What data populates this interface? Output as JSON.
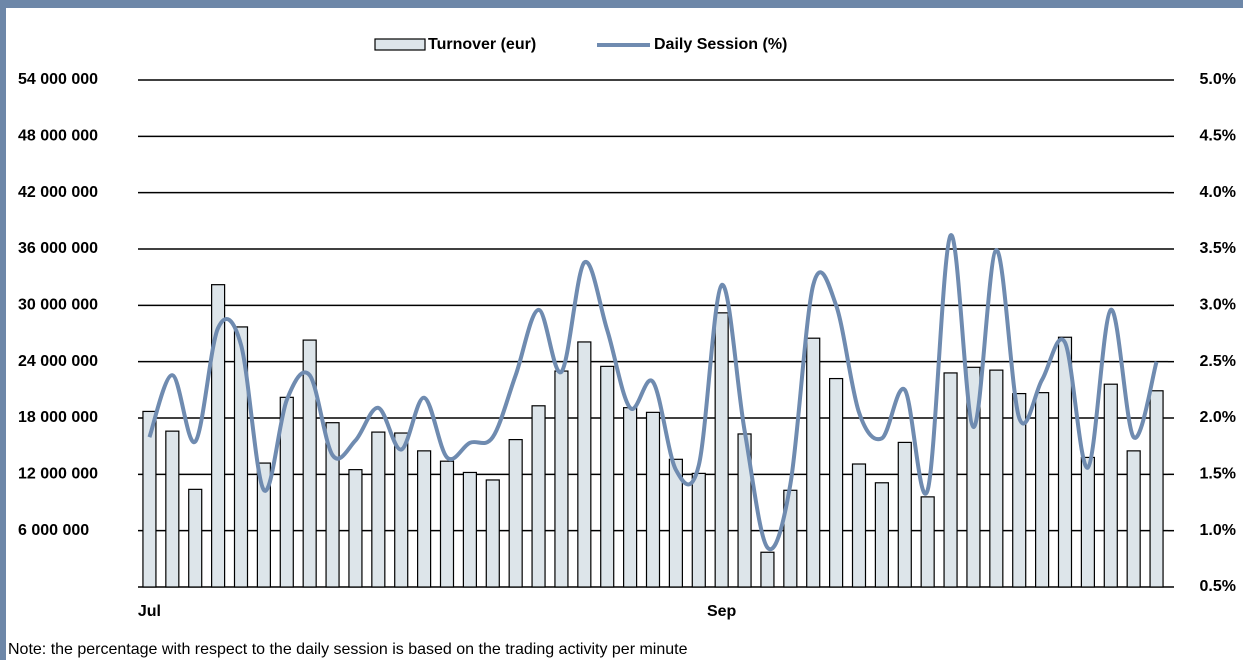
{
  "chart_data": {
    "type": "bar-line",
    "note": "Note: the percentage with respect to the daily session is based on the trading activity per minute",
    "categories": [
      "Jul",
      null,
      null,
      null,
      null,
      null,
      null,
      null,
      null,
      null,
      null,
      null,
      null,
      null,
      null,
      null,
      null,
      null,
      null,
      null,
      null,
      null,
      null,
      null,
      null,
      "Sep",
      null,
      null,
      null,
      null,
      null,
      null,
      null,
      null,
      null,
      null,
      null,
      null,
      null,
      null,
      null,
      null,
      null,
      null,
      null
    ],
    "series": [
      {
        "name": "Turnover (eur)",
        "color": "#dde5ea",
        "values": [
          18700000,
          16600000,
          10400000,
          32200000,
          27700000,
          13200000,
          20200000,
          26300000,
          17500000,
          12500000,
          16500000,
          16400000,
          14500000,
          13400000,
          12200000,
          11400000,
          15700000,
          19300000,
          23000000,
          26100000,
          23500000,
          19100000,
          18600000,
          13600000,
          12100000,
          29200000,
          16300000,
          3700000,
          10300000,
          26500000,
          22200000,
          13100000,
          11100000,
          15400000,
          9600000,
          22800000,
          23400000,
          23100000,
          20600000,
          20700000,
          26600000,
          13800000,
          21600000,
          14500000,
          20900000
        ]
      },
      {
        "name": "Daily Session (%)",
        "color": "#6f8bb0",
        "axis": "y2",
        "values": [
          1.83,
          2.38,
          1.79,
          2.8,
          2.65,
          1.36,
          2.16,
          2.38,
          1.67,
          1.8,
          2.09,
          1.72,
          2.18,
          1.65,
          1.78,
          1.83,
          2.38,
          2.96,
          2.41,
          3.38,
          2.78,
          2.09,
          2.32,
          1.54,
          1.58,
          3.18,
          1.89,
          0.85,
          1.41,
          3.18,
          3.0,
          2.05,
          1.82,
          2.25,
          1.36,
          3.62,
          1.92,
          3.49,
          2.0,
          2.34,
          2.67,
          1.56,
          2.96,
          1.83,
          2.5
        ]
      }
    ],
    "ylim": [
      0,
      54000000
    ],
    "yticks": [
      {
        "value": 6000000,
        "label": "6 000 000"
      },
      {
        "value": 12000000,
        "label": "12 000 000"
      },
      {
        "value": 18000000,
        "label": "18 000 000"
      },
      {
        "value": 24000000,
        "label": "24 000 000"
      },
      {
        "value": 30000000,
        "label": "30 000 000"
      },
      {
        "value": 36000000,
        "label": "36 000 000"
      },
      {
        "value": 42000000,
        "label": "42 000 000"
      },
      {
        "value": 48000000,
        "label": "48 000 000"
      },
      {
        "value": 54000000,
        "label": "54 000 000"
      }
    ],
    "y2lim": [
      0.5,
      5.0
    ],
    "y2ticks": [
      {
        "value": 0.5,
        "label": "0.5%"
      },
      {
        "value": 1.0,
        "label": "1.0%"
      },
      {
        "value": 1.5,
        "label": "1.5%"
      },
      {
        "value": 2.0,
        "label": "2.0%"
      },
      {
        "value": 2.5,
        "label": "2.5%"
      },
      {
        "value": 3.0,
        "label": "3.0%"
      },
      {
        "value": 3.5,
        "label": "3.5%"
      },
      {
        "value": 4.0,
        "label": "4.0%"
      },
      {
        "value": 4.5,
        "label": "4.5%"
      },
      {
        "value": 5.0,
        "label": "5.0%"
      }
    ],
    "grid": true
  }
}
